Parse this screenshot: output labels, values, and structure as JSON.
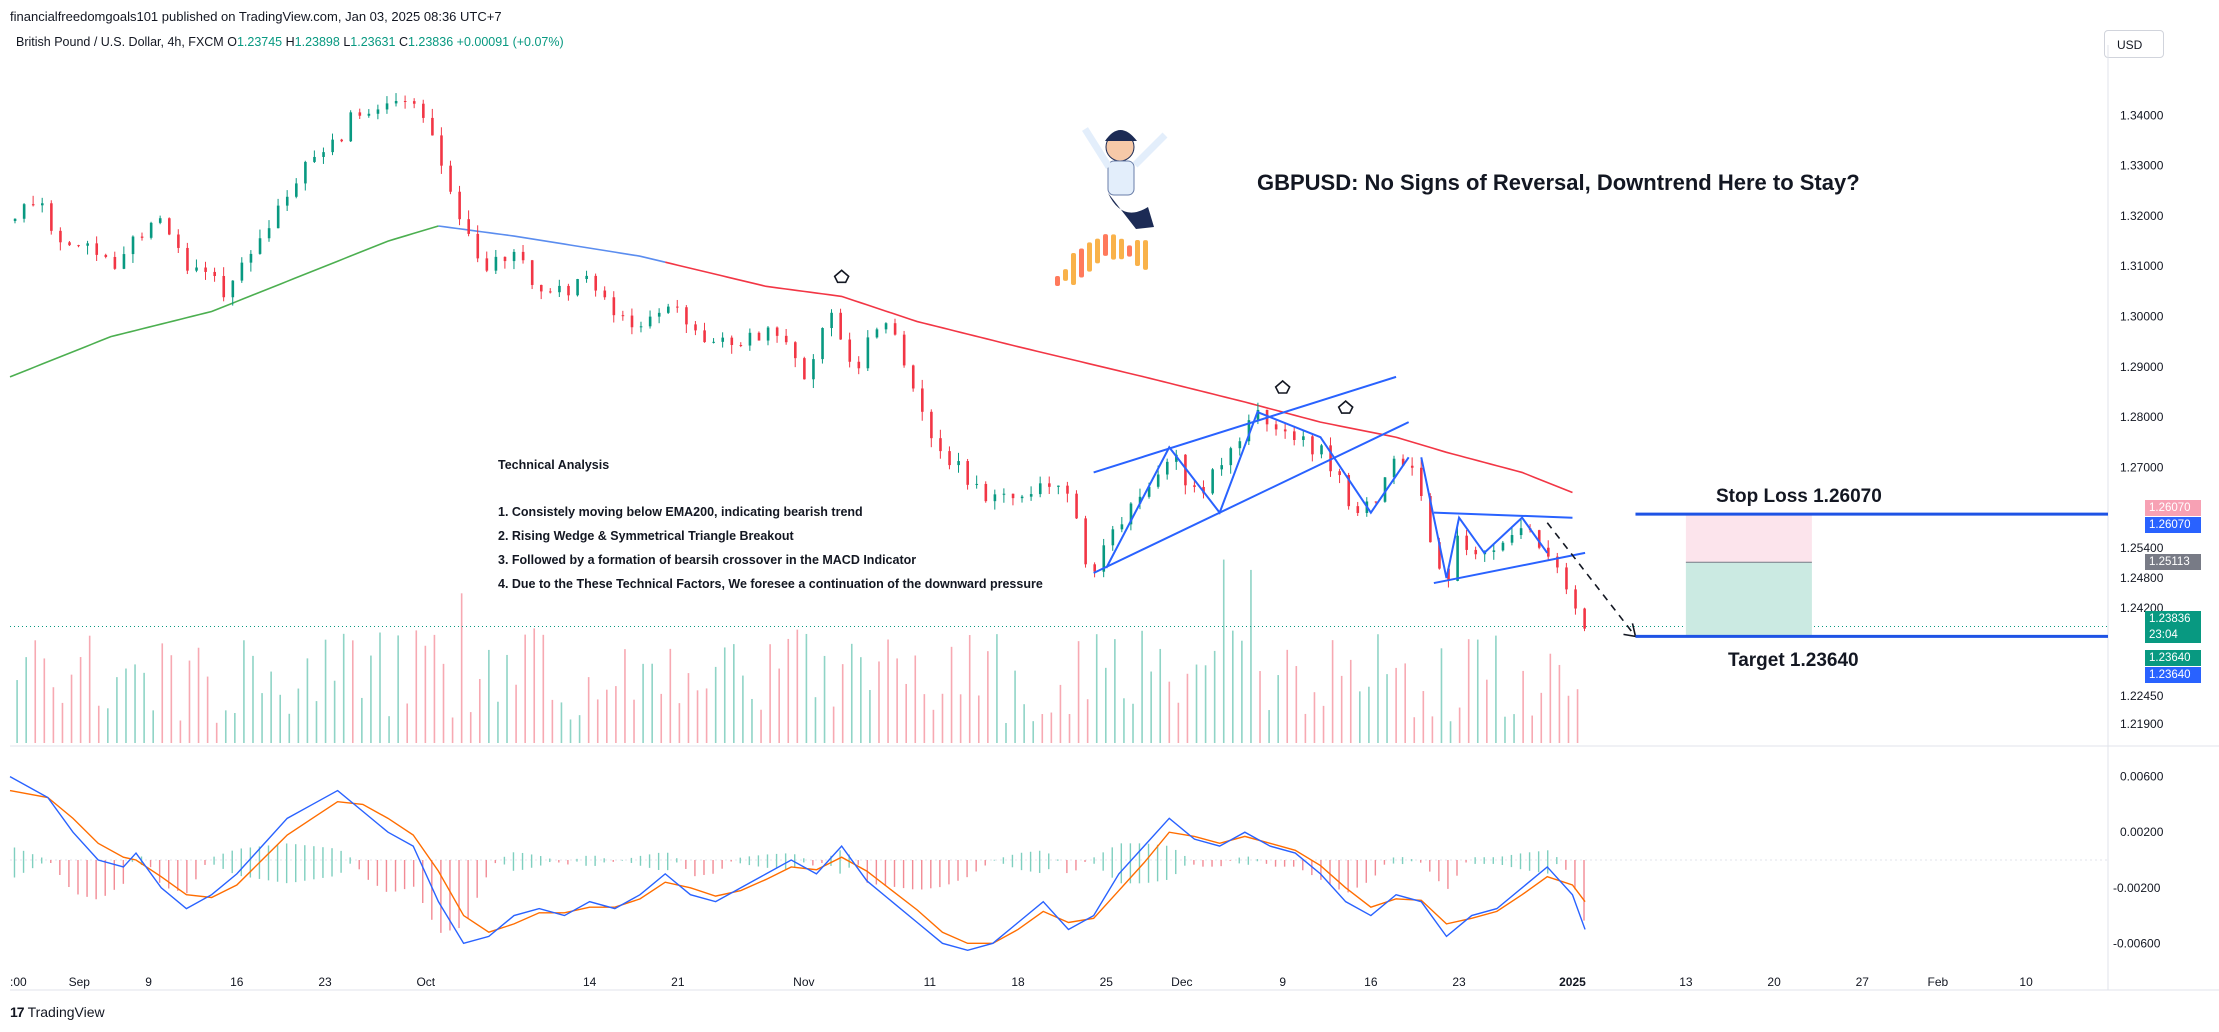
{
  "header": {
    "publisher": "financialfreedomgoals101 published on TradingView.com, Jan 03, 2025 08:36 UTC+7",
    "symbol": "British Pound / U.S. Dollar, 4h, FXCM",
    "o_label": "O",
    "o_value": "1.23745",
    "h_label": "H",
    "h_value": "1.23898",
    "l_label": "L",
    "l_value": "1.23631",
    "c_label": "C",
    "c_value": "1.23836",
    "change": "+0.00091 (+0.07%)",
    "currency": "USD"
  },
  "annotations": {
    "title": "GBPUSD: No Signs of Reversal, Downtrend Here to Stay?",
    "ta_heading": "Technical Analysis",
    "ta_points": [
      "1. Consistely moving below EMA200, indicating bearish trend",
      "2. Rising Wedge & Symmetrical Triangle Breakout",
      "3. Followed by a formation of bearsih crossover in the MACD Indicator",
      "4. Due to the These Technical Factors, We foresee a continuation of the downward pressure"
    ],
    "stop_loss": "Stop Loss 1.26070",
    "target": "Target 1.23640"
  },
  "price_tags": [
    {
      "text": "1.26070",
      "color": "#f7a1b4",
      "price": 1.2607,
      "offset": -6
    },
    {
      "text": "1.26070",
      "color": "#2962ff",
      "price": 1.2607,
      "offset": 11
    },
    {
      "text": "1.25113",
      "color": "#787b86",
      "price": 1.25113,
      "offset": 0
    },
    {
      "text": "1.23836",
      "color": "#089981",
      "price": 1.23836,
      "offset": -8
    },
    {
      "text": "23:04",
      "color": "#089981",
      "price": 1.23836,
      "offset": 8
    },
    {
      "text": "1.23640",
      "color": "#089981",
      "price": 1.2364,
      "offset": 22
    },
    {
      "text": "1.23640",
      "color": "#2962ff",
      "price": 1.2364,
      "offset": 39
    }
  ],
  "footer": {
    "brand": "TradingView"
  },
  "colors": {
    "bull": "#089981",
    "bear": "#f23645",
    "ema_up": "#4caf50",
    "ema_down": "#f23645",
    "ema_flat": "#5b8def",
    "pattern": "#2962ff",
    "macd": "#2962ff",
    "signal": "#ff6d00"
  },
  "chart_data": {
    "type": "candlestick",
    "ylim": [
      1.2152,
      1.352
    ],
    "y_ticks": [
      "1.34000",
      "1.33000",
      "1.32000",
      "1.31000",
      "1.30000",
      "1.29000",
      "1.28000",
      "1.27000",
      "1.25400",
      "1.24800",
      "1.24200",
      "1.22450",
      "1.21900"
    ],
    "y_tick_values": [
      1.34,
      1.33,
      1.32,
      1.31,
      1.3,
      1.29,
      1.28,
      1.27,
      1.254,
      1.248,
      1.242,
      1.2245,
      1.219
    ],
    "x_ticks": [
      {
        "label": ":00",
        "t": 0
      },
      {
        "label": "Sep",
        "t": 5.5
      },
      {
        "label": "9",
        "t": 11
      },
      {
        "label": "16",
        "t": 18
      },
      {
        "label": "23",
        "t": 25
      },
      {
        "label": "Oct",
        "t": 33
      },
      {
        "label": "14",
        "t": 46
      },
      {
        "label": "21",
        "t": 53
      },
      {
        "label": "Nov",
        "t": 63
      },
      {
        "label": "11",
        "t": 73
      },
      {
        "label": "18",
        "t": 80
      },
      {
        "label": "25",
        "t": 87
      },
      {
        "label": "Dec",
        "t": 93
      },
      {
        "label": "9",
        "t": 101
      },
      {
        "label": "16",
        "t": 108
      },
      {
        "label": "23",
        "t": 115
      },
      {
        "label": "2025",
        "t": 124
      },
      {
        "label": "13",
        "t": 133
      },
      {
        "label": "20",
        "t": 140
      },
      {
        "label": "27",
        "t": 147
      },
      {
        "label": "Feb",
        "t": 153
      },
      {
        "label": "10",
        "t": 160
      }
    ],
    "price_path": [
      [
        0,
        1.319
      ],
      [
        2,
        1.324
      ],
      [
        4,
        1.315
      ],
      [
        6,
        1.313
      ],
      [
        8,
        1.31
      ],
      [
        10,
        1.315
      ],
      [
        12,
        1.32
      ],
      [
        14,
        1.31
      ],
      [
        16,
        1.307
      ],
      [
        17,
        1.303
      ],
      [
        18,
        1.309
      ],
      [
        20,
        1.317
      ],
      [
        22,
        1.325
      ],
      [
        24,
        1.331
      ],
      [
        26,
        1.335
      ],
      [
        27,
        1.342
      ],
      [
        28,
        1.338
      ],
      [
        30,
        1.341
      ],
      [
        32,
        1.342
      ],
      [
        33,
        1.338
      ],
      [
        34,
        1.331
      ],
      [
        35,
        1.325
      ],
      [
        36,
        1.316
      ],
      [
        37,
        1.312
      ],
      [
        38,
        1.31
      ],
      [
        40,
        1.312
      ],
      [
        42,
        1.306
      ],
      [
        44,
        1.305
      ],
      [
        46,
        1.307
      ],
      [
        48,
        1.3
      ],
      [
        50,
        1.298
      ],
      [
        52,
        1.303
      ],
      [
        54,
        1.297
      ],
      [
        56,
        1.294
      ],
      [
        58,
        1.296
      ],
      [
        60,
        1.297
      ],
      [
        62,
        1.293
      ],
      [
        63,
        1.288
      ],
      [
        64,
        1.295
      ],
      [
        65,
        1.303
      ],
      [
        66,
        1.293
      ],
      [
        67,
        1.288
      ],
      [
        68,
        1.297
      ],
      [
        69,
        1.298
      ],
      [
        70,
        1.296
      ],
      [
        71,
        1.29
      ],
      [
        72,
        1.283
      ],
      [
        73,
        1.277
      ],
      [
        74,
        1.273
      ],
      [
        76,
        1.268
      ],
      [
        78,
        1.263
      ],
      [
        80,
        1.265
      ],
      [
        82,
        1.268
      ],
      [
        84,
        1.266
      ],
      [
        85,
        1.253
      ],
      [
        86,
        1.25
      ],
      [
        87,
        1.256
      ],
      [
        89,
        1.262
      ],
      [
        91,
        1.268
      ],
      [
        92,
        1.274
      ],
      [
        93,
        1.269
      ],
      [
        94,
        1.264
      ],
      [
        96,
        1.272
      ],
      [
        98,
        1.277
      ],
      [
        99,
        1.28
      ],
      [
        100,
        1.276
      ],
      [
        101,
        1.278
      ],
      [
        102,
        1.275
      ],
      [
        103,
        1.274
      ],
      [
        104,
        1.274
      ],
      [
        105,
        1.269
      ],
      [
        106,
        1.264
      ],
      [
        107,
        1.261
      ],
      [
        108,
        1.262
      ],
      [
        109,
        1.268
      ],
      [
        110,
        1.272
      ],
      [
        111,
        1.27
      ],
      [
        112,
        1.262
      ],
      [
        113,
        1.252
      ],
      [
        114,
        1.248
      ],
      [
        115,
        1.257
      ],
      [
        116,
        1.253
      ],
      [
        117,
        1.255
      ],
      [
        118,
        1.252
      ],
      [
        119,
        1.256
      ],
      [
        120,
        1.258
      ],
      [
        121,
        1.254
      ],
      [
        122,
        1.252
      ],
      [
        123,
        1.247
      ],
      [
        124,
        1.241
      ],
      [
        125,
        1.2384
      ]
    ],
    "ema200": [
      [
        0,
        1.288
      ],
      [
        8,
        1.296
      ],
      [
        16,
        1.301
      ],
      [
        24,
        1.309
      ],
      [
        30,
        1.315
      ],
      [
        34,
        1.318
      ],
      [
        40,
        1.316
      ],
      [
        50,
        1.312
      ],
      [
        60,
        1.306
      ],
      [
        66,
        1.304
      ],
      [
        72,
        1.299
      ],
      [
        80,
        1.294
      ],
      [
        90,
        1.288
      ],
      [
        98,
        1.283
      ],
      [
        104,
        1.279
      ],
      [
        110,
        1.276
      ],
      [
        114,
        1.273
      ],
      [
        120,
        1.269
      ],
      [
        124,
        1.265
      ]
    ],
    "ema_segments": [
      {
        "from": 0,
        "to": 34,
        "color_key": "ema_up"
      },
      {
        "from": 34,
        "to": 52,
        "color_key": "ema_flat"
      },
      {
        "from": 52,
        "to": 124,
        "color_key": "ema_down"
      }
    ],
    "patterns": [
      {
        "name": "wedge-upper",
        "points": [
          [
            86,
            1.269
          ],
          [
            110,
            1.288
          ]
        ]
      },
      {
        "name": "wedge-lower",
        "points": [
          [
            86,
            1.249
          ],
          [
            111,
            1.279
          ]
        ]
      },
      {
        "name": "wedge-path",
        "points": [
          [
            87,
            1.25
          ],
          [
            92,
            1.274
          ],
          [
            96,
            1.261
          ],
          [
            99,
            1.281
          ],
          [
            104,
            1.276
          ],
          [
            108,
            1.261
          ],
          [
            111,
            1.272
          ]
        ]
      },
      {
        "name": "triangle-upper",
        "points": [
          [
            113,
            1.261
          ],
          [
            124,
            1.26
          ]
        ]
      },
      {
        "name": "triangle-lower",
        "points": [
          [
            113,
            1.247
          ],
          [
            125,
            1.253
          ]
        ]
      },
      {
        "name": "triangle-path",
        "points": [
          [
            112,
            1.272
          ],
          [
            114,
            1.248
          ],
          [
            115,
            1.26
          ],
          [
            117,
            1.253
          ],
          [
            120,
            1.26
          ],
          [
            122,
            1.253
          ]
        ]
      }
    ],
    "projection": [
      [
        122,
        1.259
      ],
      [
        129,
        1.2364
      ]
    ],
    "position": {
      "entry": 1.25113,
      "stop": 1.2607,
      "target": 1.2364,
      "t_start": 133,
      "t_end": 143
    },
    "levels": [
      {
        "name": "stop-loss-line",
        "price": 1.2607,
        "t_start": 129,
        "t_end": 170
      },
      {
        "name": "target-line",
        "price": 1.2364,
        "t_start": 129,
        "t_end": 170
      }
    ],
    "markers": [
      [
        66,
        1.306
      ],
      [
        101,
        1.284
      ],
      [
        106,
        1.28
      ]
    ],
    "macd_ticks": [
      "0.00600",
      "0.00200",
      "-0.00200",
      "-0.00600"
    ],
    "macd_tick_values": [
      0.006,
      0.002,
      -0.002,
      -0.006
    ],
    "macd_ylim": [
      -0.0072,
      0.0072
    ],
    "macd": [
      [
        0,
        0.006
      ],
      [
        3,
        0.0045
      ],
      [
        5,
        0.002
      ],
      [
        7,
        0.0
      ],
      [
        9,
        -0.0005
      ],
      [
        10,
        0.0005
      ],
      [
        12,
        -0.002
      ],
      [
        14,
        -0.0035
      ],
      [
        16,
        -0.0025
      ],
      [
        18,
        -0.001
      ],
      [
        20,
        0.001
      ],
      [
        22,
        0.003
      ],
      [
        24,
        0.004
      ],
      [
        26,
        0.005
      ],
      [
        28,
        0.0035
      ],
      [
        30,
        0.002
      ],
      [
        32,
        0.001
      ],
      [
        34,
        -0.003
      ],
      [
        36,
        -0.006
      ],
      [
        38,
        -0.0055
      ],
      [
        40,
        -0.004
      ],
      [
        42,
        -0.0035
      ],
      [
        44,
        -0.004
      ],
      [
        46,
        -0.003
      ],
      [
        48,
        -0.0035
      ],
      [
        50,
        -0.0025
      ],
      [
        52,
        -0.001
      ],
      [
        54,
        -0.0025
      ],
      [
        56,
        -0.003
      ],
      [
        58,
        -0.002
      ],
      [
        60,
        -0.001
      ],
      [
        62,
        0.0
      ],
      [
        64,
        -0.001
      ],
      [
        66,
        0.001
      ],
      [
        68,
        -0.0015
      ],
      [
        70,
        -0.003
      ],
      [
        72,
        -0.0045
      ],
      [
        74,
        -0.006
      ],
      [
        76,
        -0.0065
      ],
      [
        78,
        -0.006
      ],
      [
        80,
        -0.0045
      ],
      [
        82,
        -0.003
      ],
      [
        84,
        -0.005
      ],
      [
        86,
        -0.004
      ],
      [
        88,
        -0.001
      ],
      [
        90,
        0.001
      ],
      [
        92,
        0.003
      ],
      [
        94,
        0.0015
      ],
      [
        96,
        0.001
      ],
      [
        98,
        0.002
      ],
      [
        100,
        0.001
      ],
      [
        102,
        0.0005
      ],
      [
        104,
        -0.001
      ],
      [
        106,
        -0.003
      ],
      [
        108,
        -0.004
      ],
      [
        110,
        -0.0025
      ],
      [
        112,
        -0.003
      ],
      [
        114,
        -0.0055
      ],
      [
        116,
        -0.004
      ],
      [
        118,
        -0.0035
      ],
      [
        120,
        -0.002
      ],
      [
        122,
        -0.0005
      ],
      [
        124,
        -0.0025
      ],
      [
        125,
        -0.005
      ]
    ],
    "signal": [
      [
        0,
        0.005
      ],
      [
        3,
        0.0045
      ],
      [
        5,
        0.003
      ],
      [
        7,
        0.0012
      ],
      [
        9,
        0.0002
      ],
      [
        10,
        0.0
      ],
      [
        12,
        -0.0012
      ],
      [
        14,
        -0.0025
      ],
      [
        16,
        -0.0027
      ],
      [
        18,
        -0.0018
      ],
      [
        20,
        0.0
      ],
      [
        22,
        0.0018
      ],
      [
        24,
        0.003
      ],
      [
        26,
        0.0042
      ],
      [
        28,
        0.004
      ],
      [
        30,
        0.003
      ],
      [
        32,
        0.0018
      ],
      [
        34,
        -0.0008
      ],
      [
        36,
        -0.004
      ],
      [
        38,
        -0.0052
      ],
      [
        40,
        -0.0046
      ],
      [
        42,
        -0.0038
      ],
      [
        44,
        -0.0038
      ],
      [
        46,
        -0.0034
      ],
      [
        48,
        -0.0034
      ],
      [
        50,
        -0.0028
      ],
      [
        52,
        -0.0016
      ],
      [
        54,
        -0.002
      ],
      [
        56,
        -0.0026
      ],
      [
        58,
        -0.0022
      ],
      [
        60,
        -0.0014
      ],
      [
        62,
        -0.0005
      ],
      [
        64,
        -0.0007
      ],
      [
        66,
        0.0002
      ],
      [
        68,
        -0.0008
      ],
      [
        70,
        -0.0022
      ],
      [
        72,
        -0.0036
      ],
      [
        74,
        -0.0052
      ],
      [
        76,
        -0.006
      ],
      [
        78,
        -0.006
      ],
      [
        80,
        -0.005
      ],
      [
        82,
        -0.0037
      ],
      [
        84,
        -0.0045
      ],
      [
        86,
        -0.0042
      ],
      [
        88,
        -0.0022
      ],
      [
        90,
        -0.0002
      ],
      [
        92,
        0.002
      ],
      [
        94,
        0.0017
      ],
      [
        96,
        0.0012
      ],
      [
        98,
        0.0017
      ],
      [
        100,
        0.0012
      ],
      [
        102,
        0.0007
      ],
      [
        104,
        -0.0004
      ],
      [
        106,
        -0.002
      ],
      [
        108,
        -0.0034
      ],
      [
        110,
        -0.0028
      ],
      [
        112,
        -0.0029
      ],
      [
        114,
        -0.0046
      ],
      [
        116,
        -0.0042
      ],
      [
        118,
        -0.0037
      ],
      [
        120,
        -0.0025
      ],
      [
        122,
        -0.0012
      ],
      [
        124,
        -0.0018
      ],
      [
        125,
        -0.003
      ]
    ]
  }
}
